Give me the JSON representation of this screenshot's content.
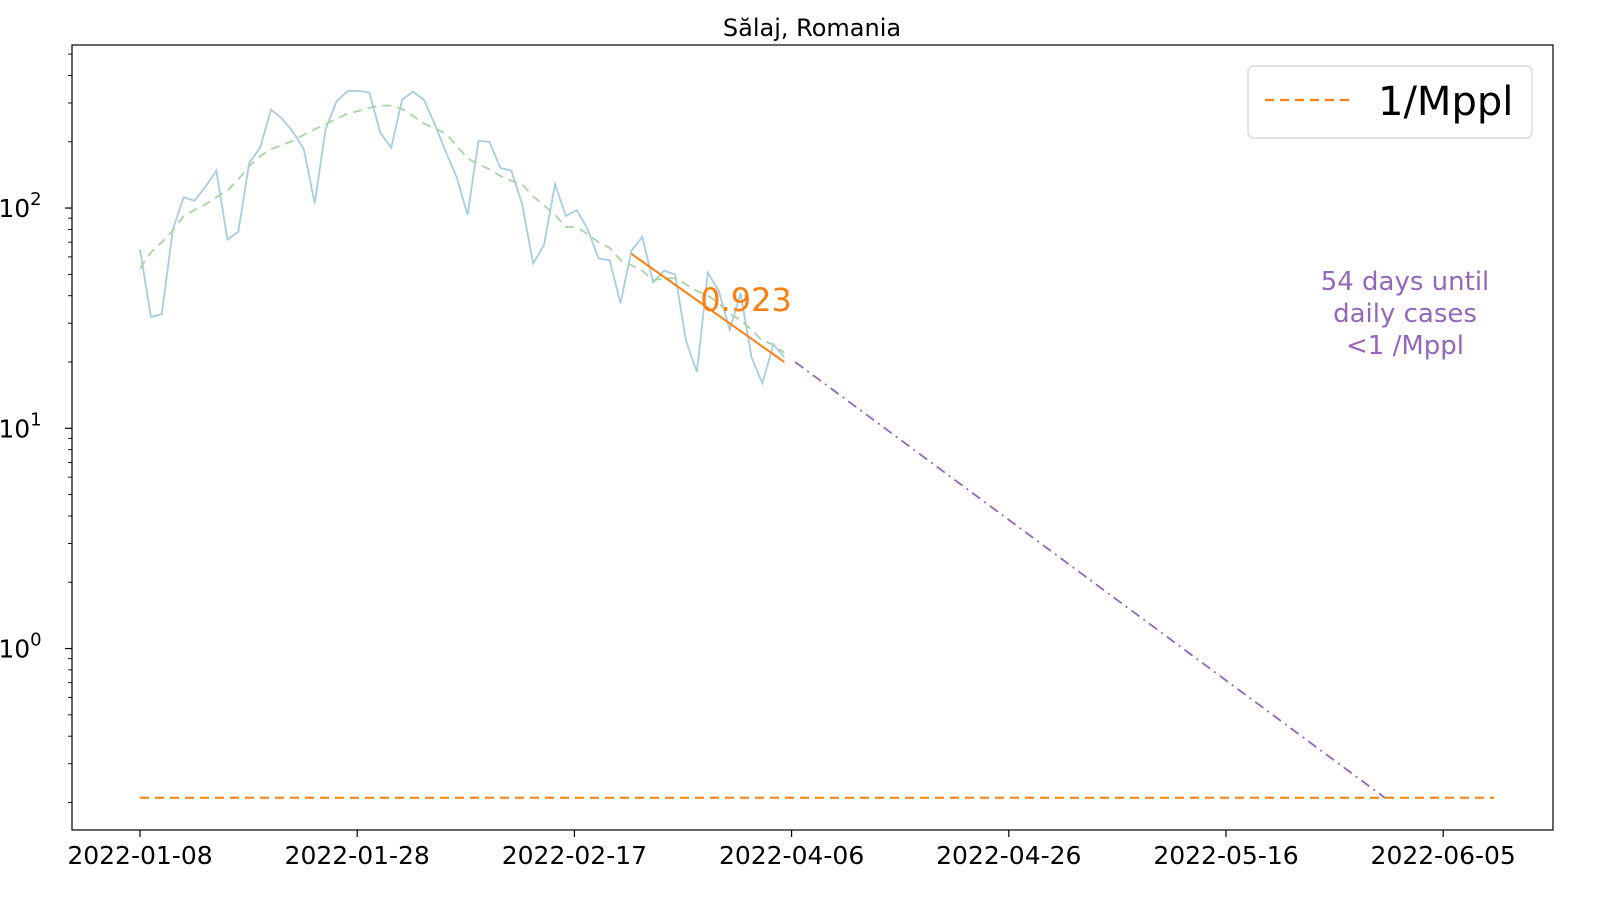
{
  "chart_data": {
    "type": "line",
    "title": "Sălaj, Romania",
    "xlabel": "",
    "ylabel": "",
    "yscale": "log",
    "ylim": [
      0.15,
      550
    ],
    "grid": false,
    "legend_position": "top-right",
    "x_tick_labels": [
      "2022-01-08",
      "2022-01-28",
      "2022-02-17",
      "2022-04-06",
      "2022-04-26",
      "2022-05-16",
      "2022-06-05"
    ],
    "y_ticks": [
      {
        "value": 1,
        "base": "10",
        "exp": "0"
      },
      {
        "value": 10,
        "base": "10",
        "exp": "1"
      },
      {
        "value": 100,
        "base": "10",
        "exp": "2"
      }
    ],
    "series": [
      {
        "role": "daily cases",
        "color": "#a6cde2",
        "style": "solid",
        "values": [
          65,
          32,
          33,
          80,
          112,
          108,
          125,
          148,
          72,
          78,
          160,
          188,
          280,
          255,
          222,
          185,
          105,
          228,
          305,
          340,
          340,
          335,
          220,
          188,
          310,
          338,
          310,
          240,
          180,
          138,
          93,
          202,
          200,
          152,
          148,
          104,
          56,
          68,
          128,
          92,
          98,
          80,
          59,
          58,
          37,
          64,
          74,
          46,
          52,
          50,
          25,
          18,
          51,
          42,
          28,
          41,
          21,
          16,
          24,
          21
        ]
      },
      {
        "role": "rolling average",
        "color": "#a8d5a2",
        "style": "dashed",
        "values": [
          53,
          63,
          70,
          79,
          92,
          98,
          104,
          112,
          120,
          135,
          155,
          172,
          185,
          193,
          202,
          215,
          228,
          240,
          255,
          268,
          276,
          285,
          292,
          292,
          282,
          262,
          242,
          230,
          218,
          192,
          168,
          158,
          150,
          140,
          133,
          128,
          113,
          103,
          93,
          82,
          82,
          76,
          70,
          66,
          58,
          55,
          52,
          47,
          48,
          48,
          45,
          42,
          40,
          37,
          33,
          31,
          28,
          25,
          24,
          22
        ]
      },
      {
        "role": "fit",
        "label": "0.923",
        "color": "#ff7f0e",
        "style": "solid",
        "points": [
          {
            "x": 45,
            "y": 62
          },
          {
            "x": 59,
            "y": 20
          }
        ]
      },
      {
        "role": "projection",
        "color": "#9467bd",
        "style": "dashdot",
        "points": [
          {
            "x": 60,
            "y": 20
          },
          {
            "x": 114,
            "y": 0.21
          }
        ]
      },
      {
        "name": "1/Mppl",
        "color": "#ff7f0e",
        "style": "dashed",
        "points": [
          {
            "x": 0,
            "y": 0.21
          },
          {
            "x": 124,
            "y": 0.21
          }
        ]
      }
    ],
    "annotations": [
      {
        "text": "0.923",
        "color": "#ff7f0e"
      },
      {
        "lines": [
          "54 days until",
          "daily cases",
          "<1 /Mppl"
        ],
        "color": "#9467bd"
      }
    ]
  }
}
